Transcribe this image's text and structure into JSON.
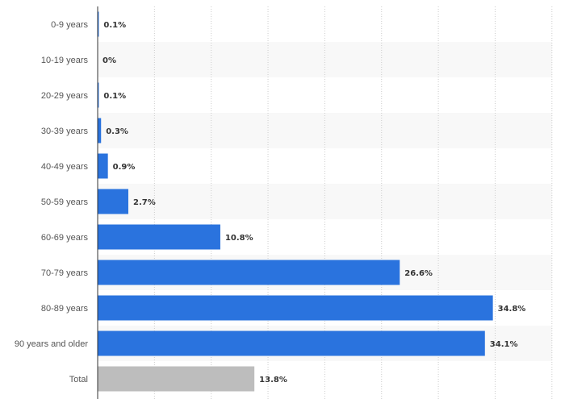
{
  "chart_data": {
    "type": "bar",
    "orientation": "horizontal",
    "categories": [
      "0-9 years",
      "10-19 years",
      "20-29 years",
      "30-39 years",
      "40-49 years",
      "50-59 years",
      "60-69 years",
      "70-79 years",
      "80-89 years",
      "90 years and older",
      "Total"
    ],
    "values": [
      0.1,
      0,
      0.1,
      0.3,
      0.9,
      2.7,
      10.8,
      26.6,
      34.8,
      34.1,
      13.8
    ],
    "value_labels": [
      "0.1%",
      "0%",
      "0.1%",
      "0.3%",
      "0.9%",
      "2.7%",
      "10.8%",
      "26.6%",
      "34.8%",
      "34.1%",
      "13.8%"
    ],
    "xlim": [
      0,
      40
    ],
    "grid": true,
    "title": "",
    "xlabel": "",
    "ylabel": "",
    "colors": {
      "bar": "#2a73de",
      "total_bar": "#bdbdbd",
      "band": "#f8f8f8",
      "grid": "#cccccc",
      "axis": "#333333"
    }
  }
}
